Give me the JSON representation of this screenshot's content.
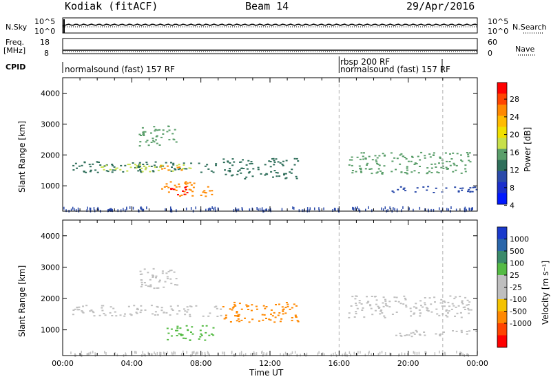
{
  "header": {
    "station": "Kodiak (fitACF)",
    "beam": "Beam 14",
    "date": "29/Apr/2016"
  },
  "top_panels": {
    "nsky_label": "N.Sky",
    "nsearch_label": "N.Search",
    "nsky_ticks": [
      "10^5",
      "10^0"
    ],
    "nsearch_ticks": [
      "10^5",
      "10^0"
    ],
    "freq_label": "Freq.",
    "freq_unit": "[MHz]",
    "freq_ticks": [
      "18",
      "8"
    ],
    "nave_label": "Nave",
    "nave_ticks": [
      "60",
      "0"
    ],
    "cpid_label": "CPID",
    "cpid_segments": [
      {
        "label": "normalsound (fast) 157 RF",
        "start_hour": 0
      },
      {
        "label": "rbsp 200 RF",
        "start_hour": 16
      },
      {
        "label": "normalsound (fast) 157 RF",
        "start_hour": 16
      }
    ]
  },
  "colorbars": {
    "power": {
      "label": "Power [dB]",
      "ticks": [
        "28",
        "24",
        "20",
        "16",
        "12",
        "8",
        "4"
      ],
      "colors": [
        "#ff0000",
        "#ff4400",
        "#ff8800",
        "#ffbb00",
        "#f0e000",
        "#c8e04a",
        "#5a9e6a",
        "#2e6e5a",
        "#2a4aaa",
        "#1a2ecc",
        "#0018ff"
      ]
    },
    "velocity": {
      "label": "Velocity [m s⁻¹]",
      "ticks": [
        "1000",
        "500",
        "100",
        "25",
        "-25",
        "-100",
        "-500",
        "-1000"
      ],
      "colors": [
        "#1a3acc",
        "#2a66aa",
        "#3a8a6a",
        "#55bb44",
        "#bfbfbf",
        "#bfbfbf",
        "#f4c200",
        "#ff8800",
        "#ff4400",
        "#ff0000"
      ]
    }
  },
  "chart_data": [
    {
      "type": "heatmap",
      "name": "power-panel",
      "ylabel": "Slant Range [km]",
      "yticks": [
        1000,
        2000,
        3000,
        4000
      ],
      "ylim": [
        180,
        4500
      ],
      "xlim": [
        0,
        24
      ],
      "dashed_lines_hours": [
        16,
        22
      ],
      "echo_regions": [
        {
          "t0": 0.5,
          "t1": 9.2,
          "r0": 1450,
          "r1": 1800,
          "color": "#2e6e5a"
        },
        {
          "t0": 2.0,
          "t1": 7.5,
          "r0": 1480,
          "r1": 1720,
          "color": "#c8e04a"
        },
        {
          "t0": 5.5,
          "t1": 7.0,
          "r0": 1520,
          "r1": 1700,
          "color": "#ff8800"
        },
        {
          "t0": 5.7,
          "t1": 8.7,
          "r0": 680,
          "r1": 1150,
          "color": "#ff8800"
        },
        {
          "t0": 6.2,
          "t1": 7.6,
          "r0": 720,
          "r1": 1000,
          "color": "#ff0000"
        },
        {
          "t0": 4.4,
          "t1": 6.6,
          "r0": 2300,
          "r1": 3000,
          "color": "#5a9e6a"
        },
        {
          "t0": 9.2,
          "t1": 13.6,
          "r0": 1250,
          "r1": 1900,
          "color": "#2e6e5a"
        },
        {
          "t0": 16.5,
          "t1": 23.6,
          "r0": 1400,
          "r1": 2100,
          "color": "#5a9e6a"
        },
        {
          "t0": 19.0,
          "t1": 24.0,
          "r0": 780,
          "r1": 1000,
          "color": "#2a4aaa"
        }
      ]
    },
    {
      "type": "heatmap",
      "name": "velocity-panel",
      "ylabel": "Slant Range [km]",
      "yticks": [
        1000,
        2000,
        3000,
        4000
      ],
      "ylim": [
        180,
        4500
      ],
      "xlim": [
        0,
        24
      ],
      "xticks": [
        "00:00",
        "04:00",
        "08:00",
        "12:00",
        "16:00",
        "20:00",
        "00:00"
      ],
      "xlabel": "Time UT",
      "dashed_lines_hours": [
        16,
        22
      ],
      "echo_regions": [
        {
          "t0": 0.5,
          "t1": 9.2,
          "r0": 1450,
          "r1": 1800,
          "color": "#bfbfbf"
        },
        {
          "t0": 5.7,
          "t1": 8.7,
          "r0": 680,
          "r1": 1150,
          "color": "#55bb44"
        },
        {
          "t0": 4.4,
          "t1": 6.6,
          "r0": 2300,
          "r1": 3000,
          "color": "#bfbfbf"
        },
        {
          "t0": 9.2,
          "t1": 13.6,
          "r0": 1250,
          "r1": 1900,
          "color": "#ff8800"
        },
        {
          "t0": 16.5,
          "t1": 23.6,
          "r0": 1400,
          "r1": 2100,
          "color": "#bfbfbf"
        },
        {
          "t0": 19.0,
          "t1": 24.0,
          "r0": 780,
          "r1": 1000,
          "color": "#bfbfbf"
        }
      ]
    }
  ]
}
